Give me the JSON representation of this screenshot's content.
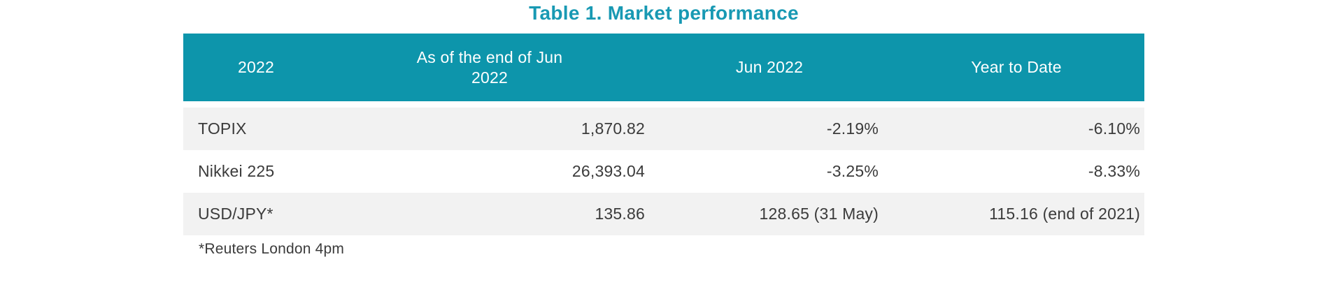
{
  "chart_data": {
    "type": "table",
    "title": "Table 1. Market performance",
    "columns": [
      "2022",
      "As of the end of Jun 2022",
      "Jun 2022",
      "Year to Date"
    ],
    "rows": [
      [
        "TOPIX",
        "1,870.82",
        "-2.19%",
        "-6.10%"
      ],
      [
        "Nikkei 225",
        "26,393.04",
        "-3.25%",
        "-8.33%"
      ],
      [
        "USD/JPY*",
        "135.86",
        "128.65 (31 May)",
        "115.16 (end of 2021)"
      ]
    ],
    "footnote": "*Reuters London 4pm",
    "layout": {
      "header_alignment": "center",
      "label_column_alignment": "left",
      "value_columns_alignment": "right",
      "row_striping": [
        "stripe",
        "plain",
        "stripe"
      ]
    }
  },
  "colors": {
    "title_text": "#1899B3",
    "header_bg": "#0D95AB",
    "header_text": "#FFFFFF",
    "row_stripe_bg": "#F2F2F2",
    "row_plain_bg": "#FFFFFF",
    "body_text": "#3B3B3B"
  }
}
